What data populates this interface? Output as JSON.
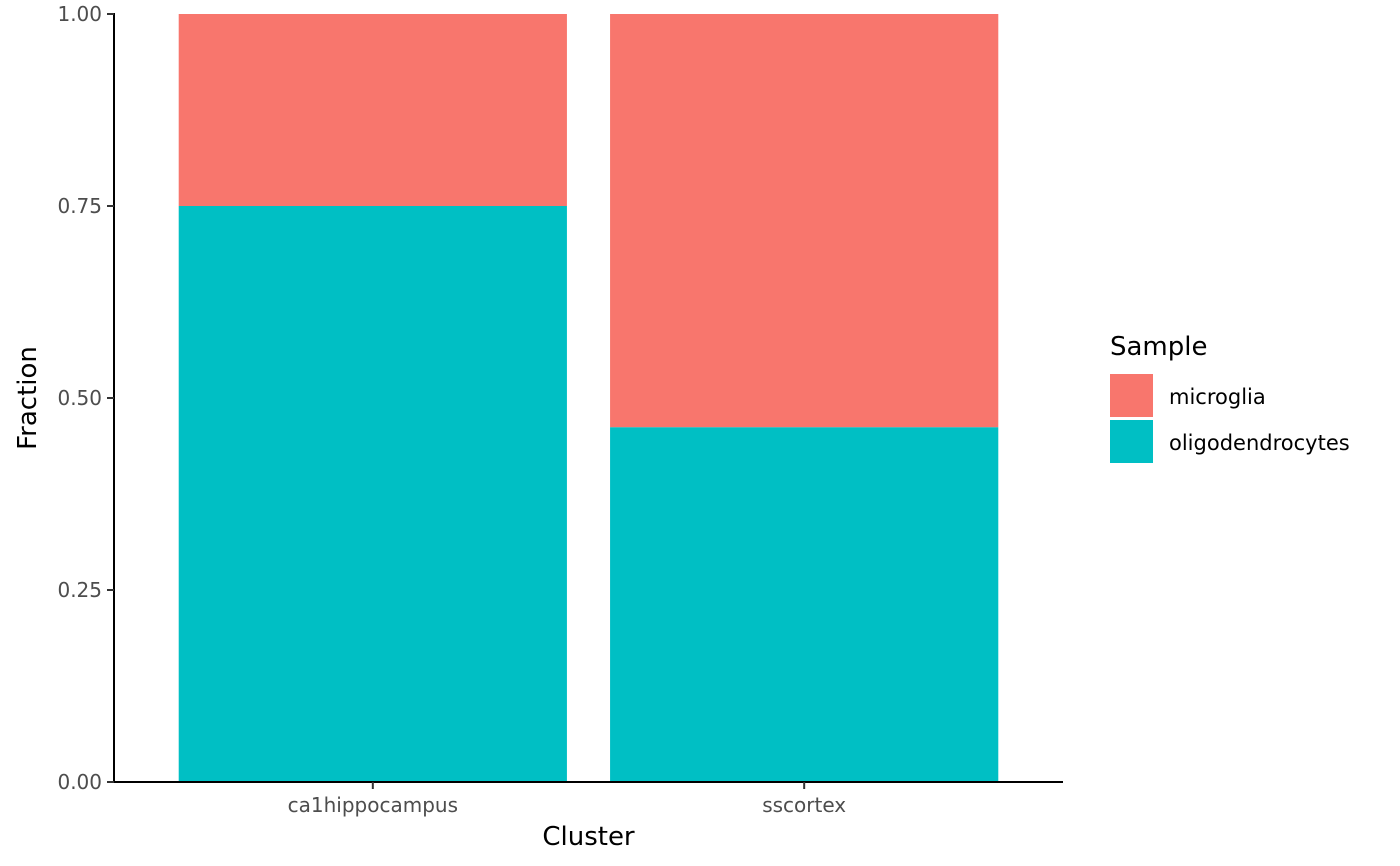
{
  "chart_data": {
    "type": "bar",
    "stacked": true,
    "categories": [
      "ca1hippocampus",
      "sscortex"
    ],
    "series": [
      {
        "name": "oligodendrocytes",
        "color": "#00BFC4",
        "values": [
          0.75,
          0.462
        ]
      },
      {
        "name": "microglia",
        "color": "#F8766D",
        "values": [
          0.25,
          0.538
        ]
      }
    ],
    "xlabel": "Cluster",
    "ylabel": "Fraction",
    "ylim": [
      0,
      1
    ],
    "yticks": [
      0,
      0.25,
      0.5,
      0.75,
      1
    ],
    "ytick_labels": [
      "0.00",
      "0.25",
      "0.50",
      "0.75",
      "1.00"
    ],
    "grid": false,
    "legend": {
      "title": "Sample",
      "placement": "right",
      "entries": [
        {
          "label": "microglia",
          "color": "#F8766D"
        },
        {
          "label": "oligodendrocytes",
          "color": "#00BFC4"
        }
      ]
    }
  }
}
